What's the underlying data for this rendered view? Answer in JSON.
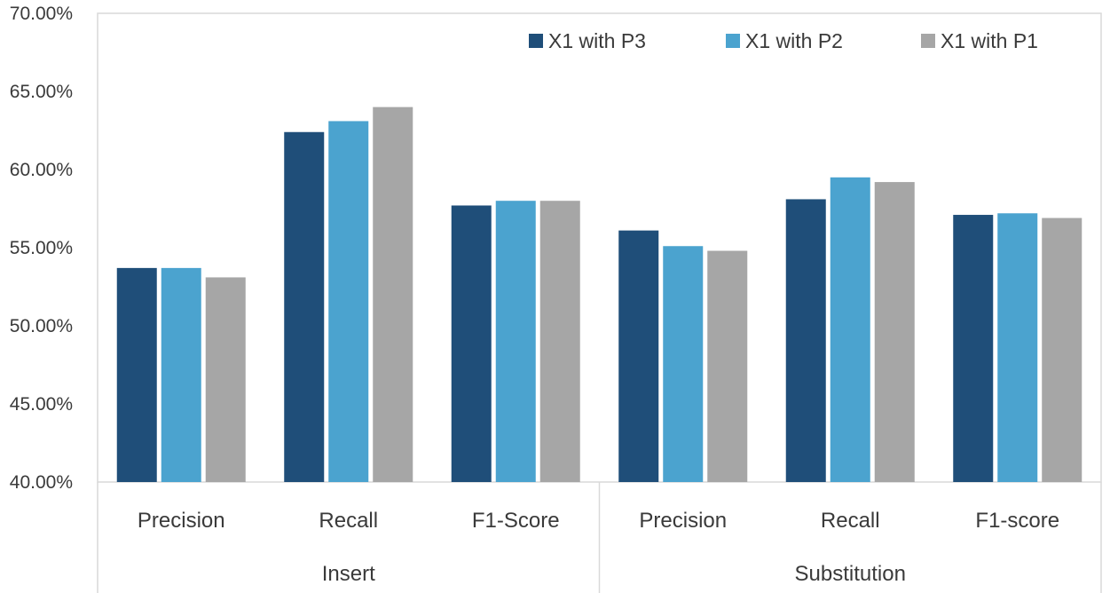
{
  "chart_data": {
    "type": "bar",
    "title": "",
    "xlabel": "",
    "ylabel": "",
    "ylim": [
      0.4,
      0.7
    ],
    "yticks": [
      "40.00%",
      "45.00%",
      "50.00%",
      "55.00%",
      "60.00%",
      "65.00%",
      "70.00%"
    ],
    "grid": false,
    "legend_position": "top-right",
    "groups": [
      {
        "label": "Insert",
        "categories": [
          "Precision",
          "Recall",
          "F1-Score"
        ]
      },
      {
        "label": "Substitution",
        "categories": [
          "Precision",
          "Recall",
          "F1-score"
        ]
      }
    ],
    "series": [
      {
        "name": "X1 with P3",
        "color": "#1f4e79",
        "values": [
          0.537,
          0.624,
          0.577,
          0.561,
          0.581,
          0.571
        ]
      },
      {
        "name": "X1 with P2",
        "color": "#4ba3cf",
        "values": [
          0.537,
          0.631,
          0.58,
          0.551,
          0.595,
          0.572
        ]
      },
      {
        "name": "X1 with P1",
        "color": "#a6a6a6",
        "values": [
          0.531,
          0.64,
          0.58,
          0.548,
          0.592,
          0.569
        ]
      }
    ]
  }
}
